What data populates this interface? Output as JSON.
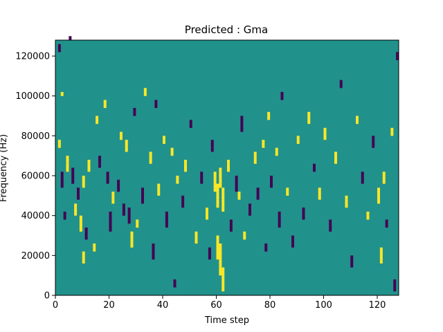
{
  "chart_data": {
    "type": "heatmap",
    "title": "Predicted : Gma",
    "xlabel": "Time step",
    "ylabel": "Frequency (Hz)",
    "xlim": [
      0,
      128
    ],
    "ylim": [
      0,
      128000
    ],
    "xticks": [
      0,
      20,
      40,
      60,
      80,
      100,
      120
    ],
    "yticks": [
      0,
      20000,
      40000,
      60000,
      80000,
      100000,
      120000
    ],
    "grid": false,
    "background_color": "#21918c",
    "class_colors": {
      "0": "#21918c",
      "1": "#fde725",
      "2": "#440154"
    },
    "n_time_steps": 128,
    "n_freq_bins": 64,
    "freq_bin_width_hz": 2000,
    "cells": [
      {
        "t": 1,
        "bins": [
          62,
          61
        ],
        "class": 2
      },
      {
        "t": 1,
        "bins": [
          38,
          37
        ],
        "class": 1
      },
      {
        "t": 2,
        "bins": [
          50
        ],
        "class": 1
      },
      {
        "t": 2,
        "bins": [
          30,
          29,
          28,
          27
        ],
        "class": 2
      },
      {
        "t": 3,
        "bins": [
          20,
          19
        ],
        "class": 2
      },
      {
        "t": 4,
        "bins": [
          34,
          33,
          32,
          31
        ],
        "class": 1
      },
      {
        "t": 5,
        "bins": [
          64
        ],
        "class": 2
      },
      {
        "t": 6,
        "bins": [
          31,
          30,
          29,
          28
        ],
        "class": 2
      },
      {
        "t": 7,
        "bins": [
          22,
          21,
          20
        ],
        "class": 1
      },
      {
        "t": 8,
        "bins": [
          26,
          25,
          24
        ],
        "class": 2
      },
      {
        "t": 9,
        "bins": [
          19,
          18,
          17,
          16
        ],
        "class": 1
      },
      {
        "t": 10,
        "bins": [
          29,
          28,
          27
        ],
        "class": 1
      },
      {
        "t": 10,
        "bins": [
          10,
          9,
          8
        ],
        "class": 1
      },
      {
        "t": 11,
        "bins": [
          16,
          15,
          14
        ],
        "class": 2
      },
      {
        "t": 12,
        "bins": [
          33,
          32,
          31
        ],
        "class": 1
      },
      {
        "t": 14,
        "bins": [
          12,
          11
        ],
        "class": 1
      },
      {
        "t": 15,
        "bins": [
          44,
          43
        ],
        "class": 1
      },
      {
        "t": 16,
        "bins": [
          34,
          33,
          32
        ],
        "class": 2
      },
      {
        "t": 18,
        "bins": [
          48,
          47
        ],
        "class": 1
      },
      {
        "t": 19,
        "bins": [
          30,
          29,
          28
        ],
        "class": 2
      },
      {
        "t": 20,
        "bins": [
          20,
          19,
          18,
          17,
          16
        ],
        "class": 2
      },
      {
        "t": 21,
        "bins": [
          25,
          24,
          23
        ],
        "class": 1
      },
      {
        "t": 23,
        "bins": [
          28,
          27,
          26
        ],
        "class": 2
      },
      {
        "t": 24,
        "bins": [
          40,
          39
        ],
        "class": 1
      },
      {
        "t": 25,
        "bins": [
          22,
          21,
          20
        ],
        "class": 2
      },
      {
        "t": 26,
        "bins": [
          38,
          37,
          36
        ],
        "class": 1
      },
      {
        "t": 27,
        "bins": [
          21,
          20,
          19,
          18
        ],
        "class": 2
      },
      {
        "t": 28,
        "bins": [
          15,
          14,
          13,
          12
        ],
        "class": 1
      },
      {
        "t": 29,
        "bins": [
          46,
          45
        ],
        "class": 2
      },
      {
        "t": 30,
        "bins": [
          18,
          17
        ],
        "class": 1
      },
      {
        "t": 32,
        "bins": [
          26,
          25,
          24,
          23
        ],
        "class": 2
      },
      {
        "t": 33,
        "bins": [
          51,
          50
        ],
        "class": 1
      },
      {
        "t": 35,
        "bins": [
          35,
          34,
          33
        ],
        "class": 1
      },
      {
        "t": 36,
        "bins": [
          12,
          11,
          10,
          9
        ],
        "class": 2
      },
      {
        "t": 37,
        "bins": [
          48,
          47
        ],
        "class": 2
      },
      {
        "t": 38,
        "bins": [
          27,
          26,
          25
        ],
        "class": 1
      },
      {
        "t": 40,
        "bins": [
          39,
          38
        ],
        "class": 1
      },
      {
        "t": 41,
        "bins": [
          20,
          19,
          18,
          17
        ],
        "class": 2
      },
      {
        "t": 43,
        "bins": [
          36,
          35
        ],
        "class": 1
      },
      {
        "t": 44,
        "bins": [
          3,
          2
        ],
        "class": 2
      },
      {
        "t": 45,
        "bins": [
          29,
          28
        ],
        "class": 1
      },
      {
        "t": 47,
        "bins": [
          24,
          23,
          22
        ],
        "class": 2
      },
      {
        "t": 48,
        "bins": [
          33,
          32,
          31
        ],
        "class": 1
      },
      {
        "t": 50,
        "bins": [
          43,
          42
        ],
        "class": 2
      },
      {
        "t": 52,
        "bins": [
          15,
          14,
          13
        ],
        "class": 1
      },
      {
        "t": 54,
        "bins": [
          30,
          29,
          28
        ],
        "class": 2
      },
      {
        "t": 56,
        "bins": [
          21,
          20,
          19
        ],
        "class": 1
      },
      {
        "t": 57,
        "bins": [
          11,
          10,
          9
        ],
        "class": 2
      },
      {
        "t": 58,
        "bins": [
          38,
          37,
          36
        ],
        "class": 2
      },
      {
        "t": 59,
        "bins": [
          30,
          29,
          28,
          27,
          26
        ],
        "class": 1
      },
      {
        "t": 60,
        "bins": [
          27,
          26,
          25,
          24,
          23,
          22
        ],
        "class": 1
      },
      {
        "t": 60,
        "bins": [
          14,
          13,
          12,
          11,
          10,
          9
        ],
        "class": 1
      },
      {
        "t": 61,
        "bins": [
          31,
          30,
          29,
          28,
          27
        ],
        "class": 1
      },
      {
        "t": 61,
        "bins": [
          12,
          11,
          10,
          9,
          8,
          7,
          6,
          5
        ],
        "class": 1
      },
      {
        "t": 62,
        "bins": [
          26,
          25,
          24,
          23,
          22,
          21
        ],
        "class": 1
      },
      {
        "t": 62,
        "bins": [
          6,
          5,
          4,
          3,
          2,
          1
        ],
        "class": 1
      },
      {
        "t": 64,
        "bins": [
          33,
          32,
          31
        ],
        "class": 1
      },
      {
        "t": 65,
        "bins": [
          18,
          17,
          16
        ],
        "class": 2
      },
      {
        "t": 67,
        "bins": [
          29,
          28,
          27,
          26
        ],
        "class": 2
      },
      {
        "t": 68,
        "bins": [
          25,
          24
        ],
        "class": 1
      },
      {
        "t": 69,
        "bins": [
          44,
          43,
          42,
          41
        ],
        "class": 2
      },
      {
        "t": 70,
        "bins": [
          15,
          14
        ],
        "class": 1
      },
      {
        "t": 72,
        "bins": [
          22,
          21,
          20
        ],
        "class": 2
      },
      {
        "t": 74,
        "bins": [
          35,
          34,
          33
        ],
        "class": 1
      },
      {
        "t": 75,
        "bins": [
          26,
          25,
          24
        ],
        "class": 2
      },
      {
        "t": 77,
        "bins": [
          38,
          37
        ],
        "class": 1
      },
      {
        "t": 78,
        "bins": [
          12,
          11
        ],
        "class": 2
      },
      {
        "t": 79,
        "bins": [
          45,
          44
        ],
        "class": 1
      },
      {
        "t": 80,
        "bins": [
          29,
          28,
          27
        ],
        "class": 2
      },
      {
        "t": 82,
        "bins": [
          36,
          35
        ],
        "class": 1
      },
      {
        "t": 83,
        "bins": [
          20,
          19,
          18,
          17
        ],
        "class": 2
      },
      {
        "t": 84,
        "bins": [
          50,
          49
        ],
        "class": 2
      },
      {
        "t": 86,
        "bins": [
          26,
          25
        ],
        "class": 1
      },
      {
        "t": 88,
        "bins": [
          14,
          13,
          12
        ],
        "class": 2
      },
      {
        "t": 90,
        "bins": [
          39,
          38
        ],
        "class": 1
      },
      {
        "t": 92,
        "bins": [
          21,
          20,
          19
        ],
        "class": 2
      },
      {
        "t": 94,
        "bins": [
          45,
          44,
          43
        ],
        "class": 1
      },
      {
        "t": 96,
        "bins": [
          32,
          31
        ],
        "class": 2
      },
      {
        "t": 98,
        "bins": [
          26,
          25,
          24
        ],
        "class": 1
      },
      {
        "t": 100,
        "bins": [
          41,
          40,
          39
        ],
        "class": 1
      },
      {
        "t": 102,
        "bins": [
          18,
          17,
          16
        ],
        "class": 2
      },
      {
        "t": 104,
        "bins": [
          35,
          34,
          33
        ],
        "class": 1
      },
      {
        "t": 106,
        "bins": [
          53,
          52
        ],
        "class": 2
      },
      {
        "t": 108,
        "bins": [
          24,
          23,
          22
        ],
        "class": 1
      },
      {
        "t": 110,
        "bins": [
          9,
          8,
          7
        ],
        "class": 2
      },
      {
        "t": 112,
        "bins": [
          44,
          43
        ],
        "class": 1
      },
      {
        "t": 114,
        "bins": [
          30,
          29,
          28
        ],
        "class": 2
      },
      {
        "t": 116,
        "bins": [
          20,
          19
        ],
        "class": 1
      },
      {
        "t": 118,
        "bins": [
          39,
          38,
          37
        ],
        "class": 2
      },
      {
        "t": 120,
        "bins": [
          26,
          25,
          24,
          23
        ],
        "class": 1
      },
      {
        "t": 121,
        "bins": [
          11,
          10,
          9,
          8
        ],
        "class": 1
      },
      {
        "t": 122,
        "bins": [
          30,
          29,
          28
        ],
        "class": 1
      },
      {
        "t": 123,
        "bins": [
          18,
          17
        ],
        "class": 2
      },
      {
        "t": 125,
        "bins": [
          41,
          40
        ],
        "class": 1
      },
      {
        "t": 126,
        "bins": [
          3,
          2,
          1
        ],
        "class": 2
      },
      {
        "t": 127,
        "bins": [
          60,
          59
        ],
        "class": 2
      }
    ]
  }
}
